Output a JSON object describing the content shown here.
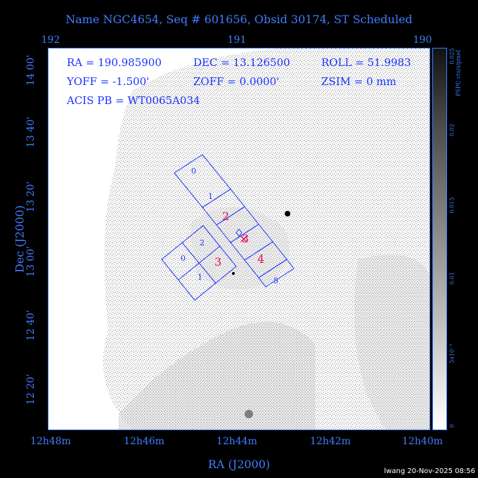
{
  "title": "Name NGC4654, Seq # 601656, Obsid 30174, ST Scheduled",
  "axes": {
    "top_ticks": [
      "192",
      "191",
      "190"
    ],
    "bottom_ticks": [
      "12h48m",
      "12h46m",
      "12h44m",
      "12h42m",
      "12h40m"
    ],
    "left_ticks": [
      "14 00'",
      "13 40'",
      "13 20'",
      "13 00'",
      "12 40'",
      "12 20'"
    ],
    "xlabel": "RA (J2000)",
    "ylabel": "Dec (J2000)"
  },
  "info": {
    "ra": "RA = 190.985900",
    "dec": "DEC = 13.126500",
    "roll": "ROLL = 51.9983",
    "yoff": "YOFF = -1.500'",
    "zoff": "ZOFF = 0.0000'",
    "zsim": "ZSIM = 0 mm",
    "acis_pb": "ACIS PB = WT0065A034"
  },
  "colorbar": {
    "label": "PSPC cts/s/pixel",
    "ticks": [
      "0.025",
      "0.02",
      "0.015",
      "0.01",
      "5x10⁻³",
      "0"
    ]
  },
  "chips": {
    "i": [
      "0",
      "1",
      "2",
      "3"
    ],
    "s": [
      "0",
      "1",
      "2",
      "3",
      "4",
      "5"
    ]
  },
  "stamp": "lwang 20-Nov-2025 08:56",
  "colors": {
    "axis": "#3f7dff",
    "chip_outline": "#1a33ff",
    "highlight_label": "#e0105a",
    "background": "#000000"
  }
}
